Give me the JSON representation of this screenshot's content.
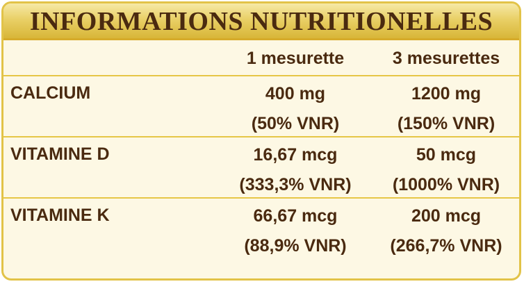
{
  "title": "INFORMATIONS NUTRITIONELLES",
  "columns": [
    "1 mesurette",
    "3 mesurettes"
  ],
  "rows": [
    {
      "nutrient": "CALCIUM",
      "col1": {
        "amount": "400 mg",
        "vnr": "(50% VNR)"
      },
      "col2": {
        "amount": "1200 mg",
        "vnr": "(150% VNR)"
      }
    },
    {
      "nutrient": "VITAMINE D",
      "col1": {
        "amount": "16,67 mcg",
        "vnr": "(333,3% VNR)"
      },
      "col2": {
        "amount": "50 mcg",
        "vnr": "(1000% VNR)"
      }
    },
    {
      "nutrient": "VITAMINE K",
      "col1": {
        "amount": "66,67 mcg",
        "vnr": "(88,9% VNR)"
      },
      "col2": {
        "amount": "200 mcg",
        "vnr": "(266,7% VNR)"
      }
    }
  ],
  "colors": {
    "text": "#4a2a10",
    "border": "#e2c348",
    "title_bg": "#e9d067",
    "panel_bg": "#fdf8e4"
  }
}
